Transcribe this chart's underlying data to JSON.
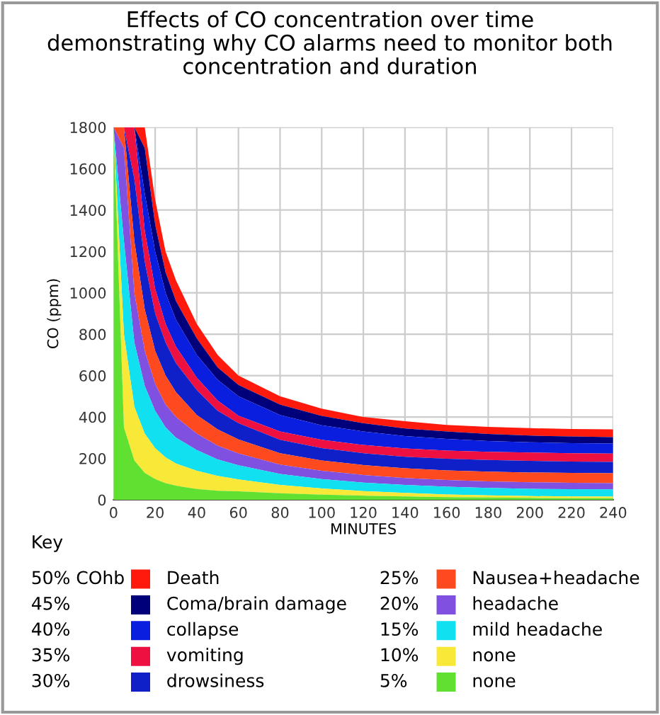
{
  "chart_data": {
    "type": "area",
    "title": "Effects of CO concentration over time\ndemonstrating why CO alarms need to monitor both\nconcentration and duration",
    "xlabel": "MINUTES",
    "ylabel": "CO (ppm)",
    "legend_title": "Key",
    "x": [
      0,
      5,
      10,
      15,
      20,
      25,
      30,
      40,
      50,
      60,
      80,
      100,
      120,
      140,
      160,
      180,
      200,
      220,
      240
    ],
    "series": [
      {
        "name": "Death",
        "color": "#ff1a0d",
        "values": [
          1800,
          1800,
          1800,
          1800,
          1450,
          1200,
          1060,
          850,
          700,
          600,
          500,
          440,
          400,
          380,
          362,
          352,
          346,
          342,
          340
        ]
      },
      {
        "name": "Coma/brain damage",
        "color": "#00007a",
        "values": [
          1800,
          1800,
          1800,
          1700,
          1330,
          1100,
          960,
          780,
          640,
          555,
          460,
          405,
          370,
          345,
          330,
          318,
          310,
          306,
          303
        ]
      },
      {
        "name": "collapse",
        "color": "#0a1ee0",
        "values": [
          1800,
          1800,
          1800,
          1480,
          1200,
          1000,
          870,
          700,
          580,
          500,
          410,
          360,
          330,
          308,
          294,
          284,
          278,
          274,
          272
        ]
      },
      {
        "name": "vomiting",
        "color": "#ee1040",
        "values": [
          1800,
          1800,
          1800,
          1300,
          1020,
          850,
          740,
          590,
          480,
          406,
          330,
          290,
          265,
          248,
          238,
          232,
          228,
          225,
          223
        ]
      },
      {
        "name": "drowsiness",
        "color": "#1020c8",
        "values": [
          1800,
          1800,
          1550,
          1150,
          900,
          760,
          660,
          530,
          430,
          370,
          290,
          250,
          225,
          208,
          198,
          192,
          188,
          185,
          183
        ]
      },
      {
        "name": "Nausea+headache",
        "color": "#ff4a20",
        "values": [
          1800,
          1800,
          1250,
          920,
          720,
          600,
          520,
          410,
          340,
          292,
          225,
          190,
          168,
          152,
          142,
          136,
          132,
          130,
          128
        ]
      },
      {
        "name": "headache",
        "color": "#8050e0",
        "values": [
          1800,
          1700,
          1000,
          720,
          560,
          460,
          400,
          320,
          262,
          224,
          170,
          140,
          120,
          105,
          96,
          89,
          85,
          82,
          80
        ]
      },
      {
        "name": "mild headache",
        "color": "#10e0f0",
        "values": [
          1800,
          1250,
          760,
          550,
          430,
          350,
          300,
          240,
          195,
          167,
          125,
          100,
          83,
          72,
          63,
          57,
          53,
          51,
          50
        ]
      },
      {
        "name": "none",
        "color": "#f8e838",
        "values": [
          1800,
          800,
          450,
          320,
          250,
          205,
          175,
          140,
          115,
          98,
          72,
          55,
          42,
          33,
          26,
          21,
          18,
          16,
          15
        ]
      },
      {
        "name": "none",
        "color": "#60e030",
        "values": [
          1800,
          350,
          190,
          130,
          100,
          80,
          68,
          52,
          44,
          41,
          32,
          25,
          20,
          16,
          13,
          11,
          9,
          8,
          8
        ]
      }
    ],
    "annotations": [
      "50% COhb",
      "45%",
      "40%",
      "35%",
      "30%",
      "25%",
      "20%",
      "15%",
      "10%",
      "5%"
    ],
    "xlim": [
      0,
      240
    ],
    "ylim": [
      0,
      1800
    ],
    "xticks": [
      0,
      20,
      40,
      60,
      80,
      100,
      120,
      140,
      160,
      180,
      200,
      220,
      240
    ],
    "yticks": [
      0,
      200,
      400,
      600,
      800,
      1000,
      1200,
      1400,
      1600,
      1800
    ],
    "grid": true,
    "legend": "bottom"
  }
}
